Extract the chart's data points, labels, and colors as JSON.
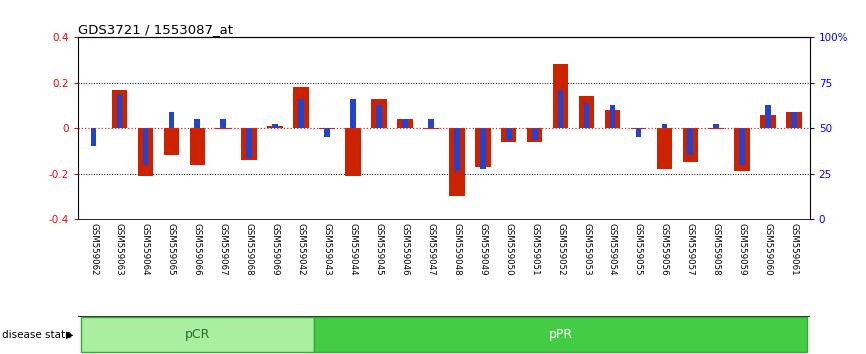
{
  "title": "GDS3721 / 1553087_at",
  "samples": [
    "GSM559062",
    "GSM559063",
    "GSM559064",
    "GSM559065",
    "GSM559066",
    "GSM559067",
    "GSM559068",
    "GSM559069",
    "GSM559042",
    "GSM559043",
    "GSM559044",
    "GSM559045",
    "GSM559046",
    "GSM559047",
    "GSM559048",
    "GSM559049",
    "GSM559050",
    "GSM559051",
    "GSM559052",
    "GSM559053",
    "GSM559054",
    "GSM559055",
    "GSM559056",
    "GSM559057",
    "GSM559058",
    "GSM559059",
    "GSM559060",
    "GSM559061"
  ],
  "red_values": [
    0.0,
    0.17,
    -0.21,
    -0.12,
    -0.16,
    -0.005,
    -0.14,
    0.01,
    0.18,
    -0.003,
    -0.21,
    0.13,
    0.04,
    -0.005,
    -0.3,
    -0.17,
    -0.06,
    -0.06,
    0.28,
    0.14,
    0.08,
    -0.003,
    -0.18,
    -0.15,
    -0.005,
    -0.19,
    0.06,
    0.07
  ],
  "blue_values": [
    -0.08,
    0.15,
    -0.16,
    0.07,
    0.04,
    0.04,
    -0.13,
    0.02,
    0.13,
    -0.04,
    0.13,
    0.1,
    0.04,
    0.04,
    -0.19,
    -0.18,
    -0.05,
    -0.05,
    0.17,
    0.11,
    0.1,
    -0.04,
    0.02,
    -0.12,
    0.02,
    -0.16,
    0.1,
    0.07
  ],
  "pcr_count": 9,
  "ppr_count": 19,
  "ylim": [
    -0.4,
    0.4
  ],
  "yticks_left": [
    -0.4,
    -0.2,
    0.0,
    0.2,
    0.4
  ],
  "yticks_right": [
    0,
    25,
    50,
    75,
    100
  ],
  "red_color": "#CC2200",
  "blue_color": "#2244CC",
  "pcr_color": "#AAEEA0",
  "ppr_color": "#44CC44",
  "tick_label_area_color": "#CCCCCC",
  "bar_width": 0.6,
  "blue_bar_width": 0.22,
  "figsize": [
    8.66,
    3.54
  ],
  "dpi": 100
}
